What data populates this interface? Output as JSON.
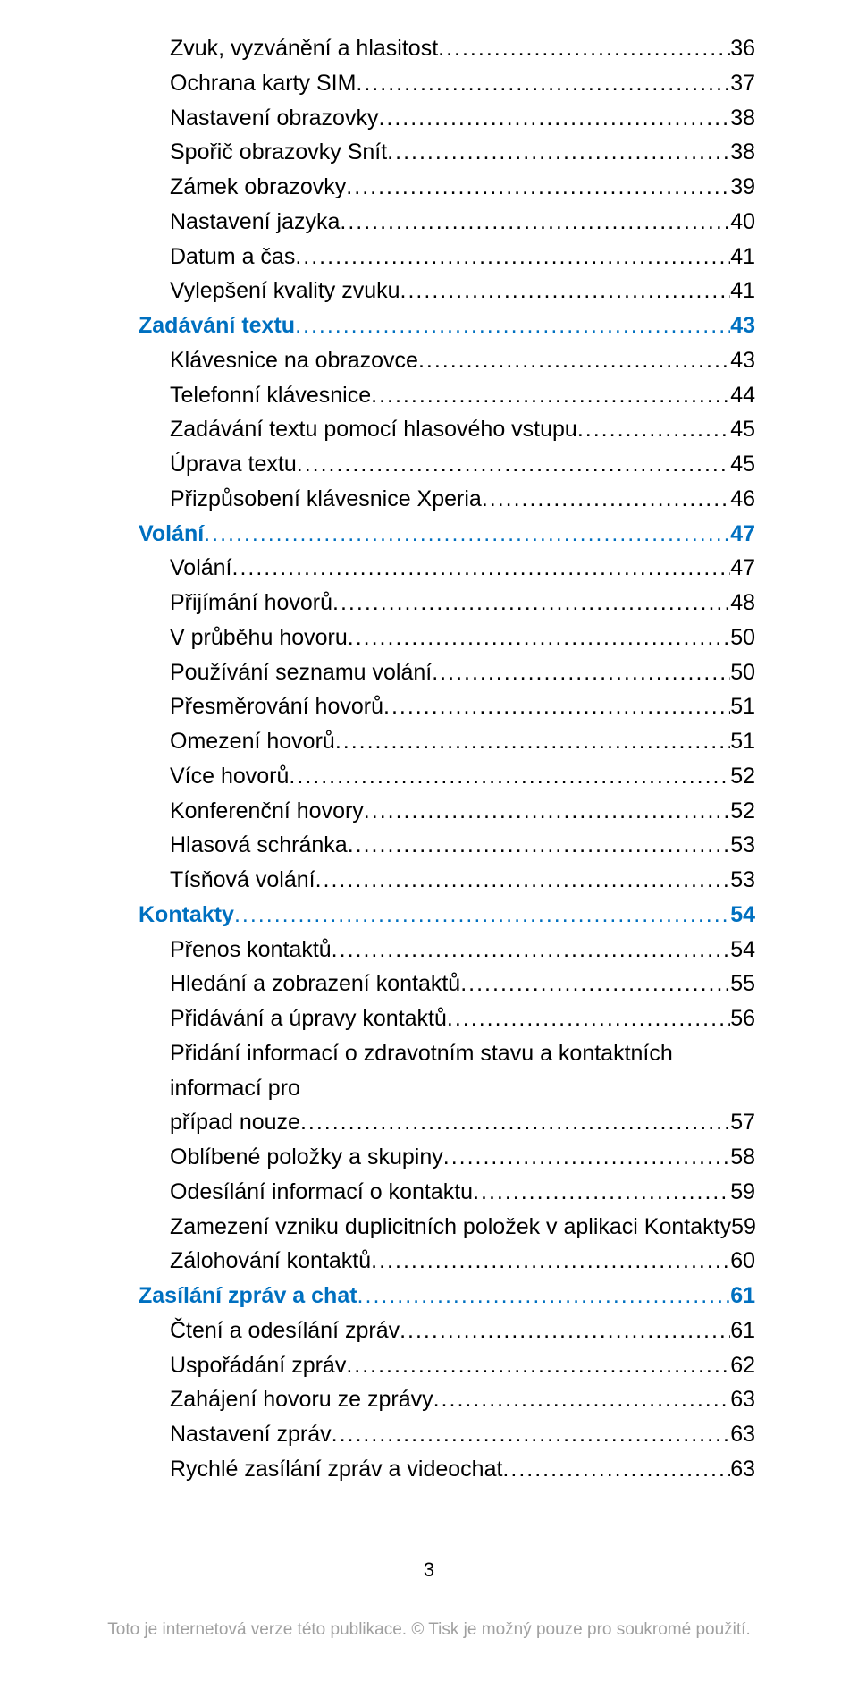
{
  "page_number": "3",
  "footer_note": "Toto je internetová verze této publikace. © Tisk je možný pouze pro soukromé použití.",
  "colors": {
    "section": "#0070c0",
    "normal": "#000000",
    "footer_gray": "#a0a0a0"
  },
  "toc": [
    {
      "level": "sub",
      "label": "Zvuk, vyzvánění a hlasitost",
      "page": "36"
    },
    {
      "level": "sub",
      "label": "Ochrana karty SIM",
      "page": "37"
    },
    {
      "level": "sub",
      "label": "Nastavení obrazovky",
      "page": "38"
    },
    {
      "level": "sub",
      "label": "Spořič obrazovky Snít",
      "page": "38"
    },
    {
      "level": "sub",
      "label": "Zámek obrazovky",
      "page": "39"
    },
    {
      "level": "sub",
      "label": "Nastavení jazyka",
      "page": "40"
    },
    {
      "level": "sub",
      "label": "Datum a čas",
      "page": "41"
    },
    {
      "level": "sub",
      "label": "Vylepšení kvality zvuku",
      "page": "41"
    },
    {
      "level": "section",
      "label": "Zadávání textu",
      "page": "43"
    },
    {
      "level": "sub",
      "label": "Klávesnice na obrazovce",
      "page": "43"
    },
    {
      "level": "sub",
      "label": "Telefonní klávesnice",
      "page": "44"
    },
    {
      "level": "sub",
      "label": "Zadávání textu pomocí hlasového vstupu",
      "page": "45"
    },
    {
      "level": "sub",
      "label": "Úprava textu",
      "page": "45"
    },
    {
      "level": "sub",
      "label": "Přizpůsobení klávesnice Xperia",
      "page": "46"
    },
    {
      "level": "section",
      "label": "Volání",
      "page": "47"
    },
    {
      "level": "sub",
      "label": "Volání",
      "page": "47"
    },
    {
      "level": "sub",
      "label": "Přijímání hovorů",
      "page": "48"
    },
    {
      "level": "sub",
      "label": "V průběhu hovoru",
      "page": "50"
    },
    {
      "level": "sub",
      "label": "Používání seznamu volání",
      "page": "50"
    },
    {
      "level": "sub",
      "label": "Přesměrování hovorů",
      "page": "51"
    },
    {
      "level": "sub",
      "label": "Omezení hovorů",
      "page": "51"
    },
    {
      "level": "sub",
      "label": "Více hovorů",
      "page": "52"
    },
    {
      "level": "sub",
      "label": "Konferenční hovory",
      "page": "52"
    },
    {
      "level": "sub",
      "label": "Hlasová schránka",
      "page": "53"
    },
    {
      "level": "sub",
      "label": "Tísňová volání",
      "page": "53"
    },
    {
      "level": "section",
      "label": "Kontakty",
      "page": "54"
    },
    {
      "level": "sub",
      "label": "Přenos kontaktů",
      "page": "54"
    },
    {
      "level": "sub",
      "label": "Hledání a zobrazení kontaktů",
      "page": "55"
    },
    {
      "level": "sub",
      "label": "Přidávání a úpravy kontaktů",
      "page": "56"
    },
    {
      "level": "wrap",
      "label_line1": "Přidání informací o zdravotním stavu a kontaktních informací pro",
      "label_line2": "případ nouze",
      "page": "57"
    },
    {
      "level": "sub",
      "label": "Oblíbené položky a skupiny",
      "page": "58"
    },
    {
      "level": "sub",
      "label": "Odesílání informací o kontaktu",
      "page": "59"
    },
    {
      "level": "sub",
      "label": "Zamezení vzniku duplicitních položek v aplikaci Kontakty",
      "page": "59"
    },
    {
      "level": "sub",
      "label": "Zálohování kontaktů",
      "page": "60"
    },
    {
      "level": "section",
      "label": "Zasílání zpráv a chat",
      "page": "61"
    },
    {
      "level": "sub",
      "label": "Čtení a odesílání zpráv",
      "page": "61"
    },
    {
      "level": "sub",
      "label": "Uspořádání zpráv",
      "page": "62"
    },
    {
      "level": "sub",
      "label": "Zahájení hovoru ze zprávy",
      "page": "63"
    },
    {
      "level": "sub",
      "label": "Nastavení zpráv",
      "page": "63"
    },
    {
      "level": "sub",
      "label": "Rychlé zasílání zpráv a videochat",
      "page": "63"
    }
  ]
}
